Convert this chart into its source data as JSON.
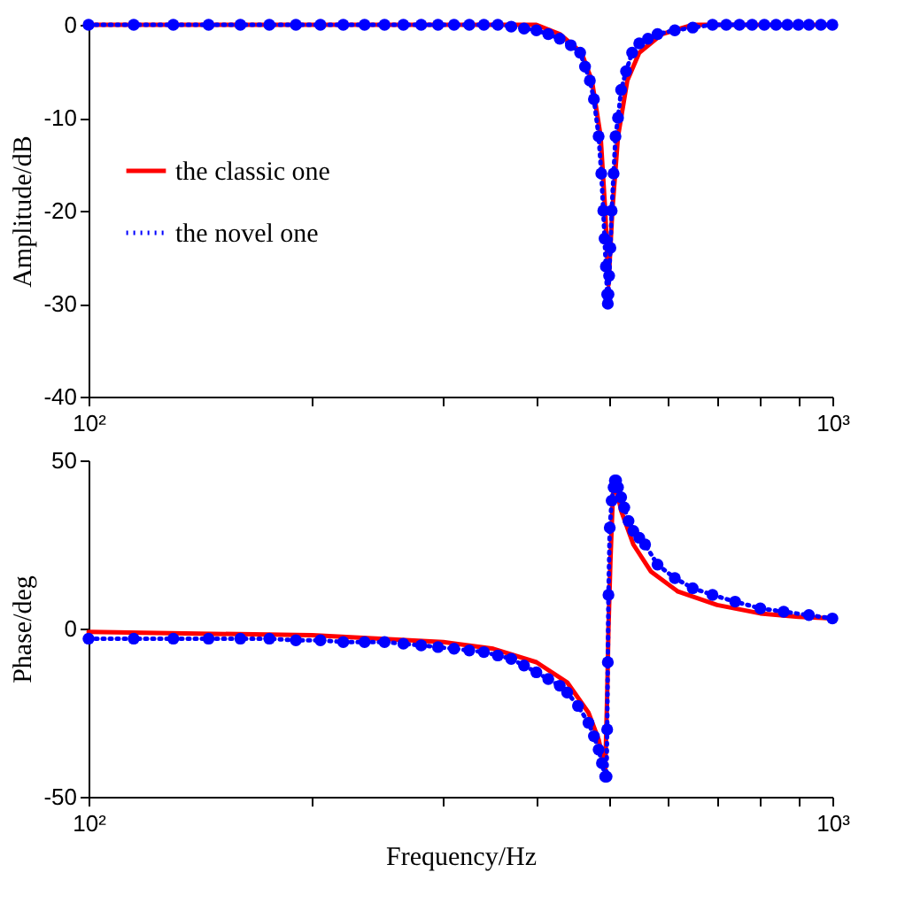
{
  "chart_data": [
    {
      "type": "line",
      "ylabel": "Amplitude/dB",
      "xlim": [
        100,
        1000
      ],
      "log": "x",
      "ylim": [
        -40,
        0
      ],
      "yticks": [
        -40,
        -30,
        -20,
        -10,
        0
      ],
      "xticks": [
        {
          "value": 100,
          "label": "10²"
        },
        {
          "value": 200,
          "label": null
        },
        {
          "value": 300,
          "label": null
        },
        {
          "value": 400,
          "label": null
        },
        {
          "value": 500,
          "label": null
        },
        {
          "value": 600,
          "label": null
        },
        {
          "value": 700,
          "label": null
        },
        {
          "value": 800,
          "label": null
        },
        {
          "value": 900,
          "label": null
        },
        {
          "value": 1000,
          "label": "10³"
        }
      ],
      "grid": false,
      "legend": "left",
      "series": [
        {
          "name": "the classic one",
          "color": "#ff0000",
          "line_style": "solid",
          "marker": "none",
          "x": [
            100,
            200,
            300,
            400,
            430,
            460,
            475,
            488,
            495,
            500,
            506,
            515,
            530,
            550,
            590,
            650,
            800,
            1000
          ],
          "values": [
            0,
            0,
            0,
            0,
            -1,
            -3,
            -6,
            -12,
            -20,
            -28,
            -20,
            -12,
            -6,
            -3,
            -1,
            0,
            0,
            0
          ]
        },
        {
          "name": "the novel one",
          "color": "#0000ff",
          "line_style": "dotted",
          "marker": "circle",
          "x": [
            100,
            115,
            130,
            145,
            160,
            175,
            190,
            205,
            220,
            235,
            250,
            265,
            280,
            295,
            310,
            325,
            340,
            355,
            370,
            385,
            400,
            415,
            430,
            445,
            458,
            465,
            472,
            478,
            485,
            489,
            492,
            494,
            496,
            498,
            499,
            500,
            501,
            503,
            505,
            508,
            511,
            515,
            520,
            528,
            538,
            550,
            565,
            582,
            614,
            649,
            690,
            720,
            750,
            780,
            810,
            840,
            870,
            900,
            930,
            965,
            1000
          ],
          "values": [
            0,
            0,
            0,
            0,
            0,
            0,
            0,
            0,
            0,
            0,
            0,
            0,
            0,
            0,
            0,
            0,
            0,
            0,
            -0.2,
            -0.4,
            -0.6,
            -1,
            -1.5,
            -2.2,
            -3,
            -4.5,
            -6,
            -8,
            -12,
            -16,
            -20,
            -23,
            -26,
            -29,
            -30,
            -29,
            -27,
            -24,
            -20,
            -16,
            -12,
            -10,
            -7,
            -5,
            -3,
            -2,
            -1.5,
            -1,
            -0.6,
            -0.3,
            0,
            0,
            0,
            0,
            0,
            0,
            0,
            0,
            0,
            0,
            0
          ]
        }
      ]
    },
    {
      "type": "line",
      "xlabel": "Frequency/Hz",
      "ylabel": "Phase/deg",
      "xlim": [
        100,
        1000
      ],
      "log": "x",
      "ylim": [
        -50,
        50
      ],
      "yticks": [
        -50,
        0,
        50
      ],
      "xticks": [
        {
          "value": 100,
          "label": "10²"
        },
        {
          "value": 200,
          "label": null
        },
        {
          "value": 300,
          "label": null
        },
        {
          "value": 400,
          "label": null
        },
        {
          "value": 500,
          "label": null
        },
        {
          "value": 600,
          "label": null
        },
        {
          "value": 700,
          "label": null
        },
        {
          "value": 800,
          "label": null
        },
        {
          "value": 900,
          "label": null
        },
        {
          "value": 1000,
          "label": "10³"
        }
      ],
      "grid": false,
      "series": [
        {
          "color": "#ff0000",
          "line_style": "solid",
          "marker": "none",
          "x": [
            100,
            200,
            300,
            350,
            400,
            440,
            470,
            485,
            495,
            498,
            500,
            503,
            507,
            512,
            520,
            540,
            570,
            620,
            700,
            800,
            900,
            1000
          ],
          "values": [
            -1,
            -2,
            -4,
            -6,
            -10,
            -16,
            -25,
            -33,
            -42,
            -20,
            0,
            20,
            40,
            42,
            35,
            25,
            17,
            11,
            7,
            4.5,
            3.5,
            3
          ]
        },
        {
          "color": "#0000ff",
          "line_style": "dotted",
          "marker": "circle",
          "x": [
            100,
            115,
            130,
            145,
            160,
            175,
            190,
            205,
            220,
            235,
            250,
            265,
            280,
            295,
            310,
            325,
            340,
            355,
            370,
            385,
            400,
            415,
            430,
            440,
            455,
            470,
            478,
            485,
            490,
            495,
            497,
            498,
            499,
            500,
            502,
            505,
            508,
            510,
            512,
            515,
            520,
            525,
            532,
            540,
            550,
            560,
            582,
            614,
            649,
            690,
            740,
            800,
            860,
            930,
            1000
          ],
          "values": [
            -3,
            -3,
            -3,
            -3,
            -3,
            -3,
            -3.5,
            -3.5,
            -4,
            -4,
            -4,
            -4.5,
            -5,
            -5.5,
            -6,
            -6.5,
            -7,
            -8,
            -9,
            -11,
            -13,
            -15,
            -17,
            -19,
            -23,
            -28,
            -32,
            -36,
            -40,
            -44,
            -44,
            -30,
            -10,
            10,
            30,
            38,
            42,
            44,
            44,
            42,
            39,
            36,
            32,
            29,
            27,
            25,
            19,
            15,
            12,
            10,
            8,
            6,
            5,
            4,
            3
          ]
        }
      ]
    }
  ]
}
